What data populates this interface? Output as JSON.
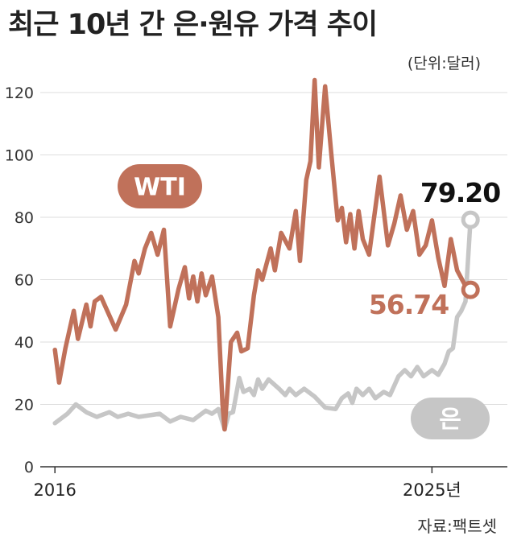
{
  "title": "최근 10년 간 은·원유 가격 추이",
  "unit": "(단위:달러)",
  "source": "자료:팩트셋",
  "colors": {
    "wti": "#c0715a",
    "silver": "#c6c6c6",
    "grid": "#dddddd",
    "axis": "#333333"
  },
  "chart_data": {
    "type": "line",
    "title": "최근 10년 간 은·원유 가격 추이",
    "xlabel": "",
    "ylabel": "(단위:달러)",
    "ylim": [
      0,
      120
    ],
    "yticks": [
      0,
      20,
      40,
      60,
      80,
      100,
      120
    ],
    "xticks": [
      {
        "x": 2016.0,
        "label": "2016"
      },
      {
        "x": 2025.0,
        "label": "2025년"
      }
    ],
    "grid": true,
    "series": [
      {
        "name": "WTI",
        "end_label": "56.74",
        "points": [
          [
            2016.0,
            37.5
          ],
          [
            2016.1,
            27.0
          ],
          [
            2016.25,
            38.0
          ],
          [
            2016.45,
            50.0
          ],
          [
            2016.55,
            41.0
          ],
          [
            2016.75,
            52.0
          ],
          [
            2016.85,
            45.0
          ],
          [
            2016.95,
            53.0
          ],
          [
            2017.1,
            54.5
          ],
          [
            2017.25,
            50.0
          ],
          [
            2017.45,
            44.0
          ],
          [
            2017.7,
            52.0
          ],
          [
            2017.9,
            66.0
          ],
          [
            2018.0,
            62.0
          ],
          [
            2018.15,
            70.0
          ],
          [
            2018.3,
            75.0
          ],
          [
            2018.45,
            68.0
          ],
          [
            2018.6,
            76.0
          ],
          [
            2018.75,
            45.0
          ],
          [
            2018.95,
            57.0
          ],
          [
            2019.1,
            64.0
          ],
          [
            2019.2,
            54.0
          ],
          [
            2019.3,
            61.0
          ],
          [
            2019.4,
            53.0
          ],
          [
            2019.5,
            62.0
          ],
          [
            2019.6,
            55.0
          ],
          [
            2019.75,
            61.0
          ],
          [
            2019.9,
            48.0
          ],
          [
            2020.0,
            20.0
          ],
          [
            2020.05,
            12.0
          ],
          [
            2020.2,
            40.0
          ],
          [
            2020.35,
            43.0
          ],
          [
            2020.45,
            37.0
          ],
          [
            2020.6,
            38.0
          ],
          [
            2020.75,
            55.0
          ],
          [
            2020.85,
            63.0
          ],
          [
            2020.95,
            60.0
          ],
          [
            2021.15,
            70.0
          ],
          [
            2021.25,
            63.0
          ],
          [
            2021.4,
            75.0
          ],
          [
            2021.6,
            70.0
          ],
          [
            2021.75,
            82.0
          ],
          [
            2021.85,
            66.0
          ],
          [
            2022.0,
            92.0
          ],
          [
            2022.1,
            98.0
          ],
          [
            2022.2,
            124.0
          ],
          [
            2022.3,
            96.0
          ],
          [
            2022.45,
            122.0
          ],
          [
            2022.6,
            100.0
          ],
          [
            2022.75,
            79.0
          ],
          [
            2022.85,
            83.0
          ],
          [
            2022.95,
            72.0
          ],
          [
            2023.05,
            81.0
          ],
          [
            2023.15,
            70.0
          ],
          [
            2023.25,
            82.0
          ],
          [
            2023.35,
            73.0
          ],
          [
            2023.5,
            68.0
          ],
          [
            2023.75,
            93.0
          ],
          [
            2023.95,
            71.0
          ],
          [
            2024.1,
            78.0
          ],
          [
            2024.25,
            87.0
          ],
          [
            2024.4,
            76.0
          ],
          [
            2024.55,
            82.0
          ],
          [
            2024.7,
            68.0
          ],
          [
            2024.85,
            71.0
          ],
          [
            2025.0,
            79.0
          ],
          [
            2025.15,
            67.0
          ],
          [
            2025.3,
            58.0
          ],
          [
            2025.45,
            73.0
          ],
          [
            2025.6,
            63.0
          ],
          [
            2025.8,
            58.0
          ],
          [
            2025.92,
            56.74
          ]
        ]
      },
      {
        "name": "은",
        "end_label": "79.20",
        "points": [
          [
            2016.0,
            14.0
          ],
          [
            2016.3,
            17.0
          ],
          [
            2016.5,
            20.0
          ],
          [
            2016.75,
            17.5
          ],
          [
            2017.0,
            16.0
          ],
          [
            2017.3,
            17.5
          ],
          [
            2017.5,
            16.0
          ],
          [
            2017.75,
            17.0
          ],
          [
            2018.0,
            16.0
          ],
          [
            2018.5,
            17.0
          ],
          [
            2018.75,
            14.5
          ],
          [
            2019.0,
            16.0
          ],
          [
            2019.3,
            15.0
          ],
          [
            2019.6,
            18.0
          ],
          [
            2019.75,
            17.0
          ],
          [
            2019.9,
            18.5
          ],
          [
            2020.05,
            12.0
          ],
          [
            2020.15,
            17.0
          ],
          [
            2020.25,
            17.5
          ],
          [
            2020.4,
            28.5
          ],
          [
            2020.5,
            24.0
          ],
          [
            2020.65,
            25.0
          ],
          [
            2020.75,
            23.0
          ],
          [
            2020.85,
            28.0
          ],
          [
            2020.95,
            25.0
          ],
          [
            2021.1,
            28.0
          ],
          [
            2021.35,
            25.0
          ],
          [
            2021.5,
            23.0
          ],
          [
            2021.6,
            25.0
          ],
          [
            2021.75,
            23.0
          ],
          [
            2021.95,
            25.0
          ],
          [
            2022.2,
            22.5
          ],
          [
            2022.45,
            19.0
          ],
          [
            2022.7,
            18.5
          ],
          [
            2022.85,
            22.0
          ],
          [
            2023.0,
            23.5
          ],
          [
            2023.1,
            20.5
          ],
          [
            2023.2,
            25.0
          ],
          [
            2023.35,
            23.0
          ],
          [
            2023.5,
            25.0
          ],
          [
            2023.65,
            22.0
          ],
          [
            2023.85,
            24.0
          ],
          [
            2024.0,
            23.0
          ],
          [
            2024.2,
            29.0
          ],
          [
            2024.35,
            31.0
          ],
          [
            2024.5,
            29.0
          ],
          [
            2024.65,
            32.0
          ],
          [
            2024.8,
            29.0
          ],
          [
            2025.0,
            31.0
          ],
          [
            2025.15,
            29.5
          ],
          [
            2025.3,
            33.0
          ],
          [
            2025.4,
            37.0
          ],
          [
            2025.5,
            38.0
          ],
          [
            2025.6,
            48.0
          ],
          [
            2025.7,
            50.0
          ],
          [
            2025.8,
            53.0
          ],
          [
            2025.92,
            79.2
          ]
        ]
      }
    ]
  }
}
